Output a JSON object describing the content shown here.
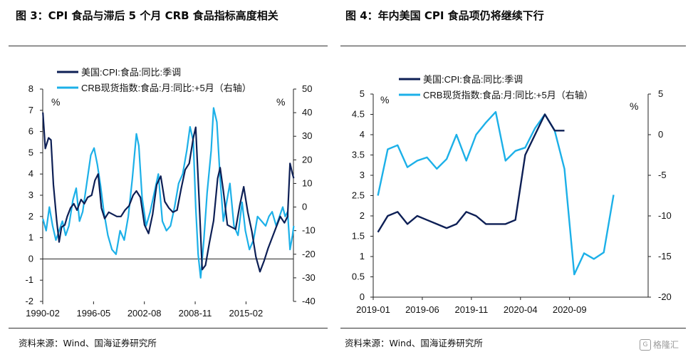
{
  "titles": {
    "left": "图 3：CPI 食品与滞后 5 个月 CRB 食品指标高度相关",
    "right": "图 4：年内美国 CPI 食品项仍将继续下行"
  },
  "sources": {
    "left": "资料来源：Wind、国海证券研究所",
    "right": "资料来源：Wind、国海证券研究所"
  },
  "watermark": {
    "icon": "gelonghui-logo-icon",
    "text": "格隆汇"
  },
  "colors": {
    "cpi_series": "#0d1f55",
    "crb_series": "#1cb0e8",
    "rule": "#333333"
  },
  "chart_data": [
    {
      "type": "line",
      "legend_position": "top-left",
      "grid": false,
      "x_ticks": [
        "1990-02",
        "1996-05",
        "2002-08",
        "2008-11",
        "2015-02"
      ],
      "x_range": [
        "1990-02",
        "2020-12"
      ],
      "y_left": {
        "lim": [
          -2,
          8
        ],
        "ticks": [
          -2,
          -1,
          0,
          1,
          2,
          3,
          4,
          5,
          6,
          7,
          8
        ],
        "unit": "%"
      },
      "y_right": {
        "lim": [
          -40,
          50
        ],
        "ticks": [
          -40,
          -30,
          -20,
          -10,
          0,
          10,
          20,
          30,
          40,
          50
        ],
        "unit": "%"
      },
      "series": [
        {
          "name": "美国:CPI:食品:同比:季调",
          "axis": "left",
          "points": [
            [
              1990.1,
              6.9
            ],
            [
              1990.4,
              5.2
            ],
            [
              1990.8,
              5.7
            ],
            [
              1991.1,
              5.6
            ],
            [
              1991.4,
              3.5
            ],
            [
              1991.8,
              1.8
            ],
            [
              1992.1,
              0.8
            ],
            [
              1992.4,
              1.5
            ],
            [
              1992.8,
              1.6
            ],
            [
              1993.1,
              2.0
            ],
            [
              1993.5,
              2.4
            ],
            [
              1993.9,
              2.6
            ],
            [
              1994.3,
              2.3
            ],
            [
              1994.8,
              2.8
            ],
            [
              1995.2,
              2.6
            ],
            [
              1995.6,
              2.9
            ],
            [
              1996.1,
              3.0
            ],
            [
              1996.5,
              3.7
            ],
            [
              1996.9,
              4.0
            ],
            [
              1997.3,
              2.4
            ],
            [
              1997.7,
              1.9
            ],
            [
              1998.2,
              2.2
            ],
            [
              1998.7,
              2.1
            ],
            [
              1999.2,
              2.0
            ],
            [
              1999.7,
              2.0
            ],
            [
              2000.2,
              2.3
            ],
            [
              2000.7,
              2.5
            ],
            [
              2001.2,
              3.0
            ],
            [
              2001.6,
              3.2
            ],
            [
              2002.1,
              2.9
            ],
            [
              2002.6,
              1.6
            ],
            [
              2003.1,
              1.2
            ],
            [
              2003.6,
              2.1
            ],
            [
              2004.1,
              3.5
            ],
            [
              2004.6,
              3.9
            ],
            [
              2005.1,
              2.7
            ],
            [
              2005.6,
              2.4
            ],
            [
              2006.1,
              2.2
            ],
            [
              2006.6,
              2.3
            ],
            [
              2007.1,
              3.3
            ],
            [
              2007.6,
              4.2
            ],
            [
              2008.1,
              4.5
            ],
            [
              2008.6,
              5.7
            ],
            [
              2008.9,
              6.2
            ],
            [
              2009.3,
              2.9
            ],
            [
              2009.7,
              -0.5
            ],
            [
              2010.1,
              -0.3
            ],
            [
              2010.6,
              0.8
            ],
            [
              2011.1,
              1.8
            ],
            [
              2011.6,
              3.8
            ],
            [
              2011.9,
              4.3
            ],
            [
              2012.3,
              3.2
            ],
            [
              2012.8,
              1.6
            ],
            [
              2013.3,
              1.5
            ],
            [
              2013.8,
              1.4
            ],
            [
              2014.3,
              2.5
            ],
            [
              2014.8,
              3.4
            ],
            [
              2015.3,
              2.2
            ],
            [
              2015.8,
              1.3
            ],
            [
              2016.3,
              0.1
            ],
            [
              2016.8,
              -0.6
            ],
            [
              2017.3,
              -0.1
            ],
            [
              2017.8,
              0.5
            ],
            [
              2018.3,
              1.0
            ],
            [
              2018.8,
              1.5
            ],
            [
              2019.3,
              2.0
            ],
            [
              2019.8,
              1.7
            ],
            [
              2020.2,
              2.0
            ],
            [
              2020.5,
              4.5
            ],
            [
              2020.8,
              4.0
            ],
            [
              2020.95,
              3.8
            ]
          ]
        },
        {
          "name": "CRB现货指数:食品:月:同比:+5月（右轴）",
          "axis": "right",
          "points": [
            [
              1990.1,
              -5
            ],
            [
              1990.5,
              -10
            ],
            [
              1990.9,
              0
            ],
            [
              1991.3,
              -8
            ],
            [
              1991.7,
              -14
            ],
            [
              1992.1,
              -10
            ],
            [
              1992.5,
              -6
            ],
            [
              1992.9,
              -12
            ],
            [
              1993.3,
              -8
            ],
            [
              1993.8,
              3
            ],
            [
              1994.2,
              8
            ],
            [
              1994.6,
              -6
            ],
            [
              1995.0,
              -2
            ],
            [
              1995.5,
              10
            ],
            [
              1996.0,
              22
            ],
            [
              1996.4,
              25
            ],
            [
              1996.8,
              18
            ],
            [
              1997.2,
              9
            ],
            [
              1997.6,
              -2
            ],
            [
              1998.1,
              -12
            ],
            [
              1998.6,
              -18
            ],
            [
              1999.1,
              -20
            ],
            [
              1999.6,
              -10
            ],
            [
              2000.1,
              -14
            ],
            [
              2000.6,
              -4
            ],
            [
              2001.1,
              12
            ],
            [
              2001.6,
              31
            ],
            [
              2001.9,
              26
            ],
            [
              2002.3,
              4
            ],
            [
              2002.8,
              -8
            ],
            [
              2003.3,
              -2
            ],
            [
              2003.8,
              6
            ],
            [
              2004.3,
              14
            ],
            [
              2004.8,
              -6
            ],
            [
              2005.3,
              -10
            ],
            [
              2005.8,
              -8
            ],
            [
              2006.3,
              0
            ],
            [
              2006.8,
              10
            ],
            [
              2007.3,
              14
            ],
            [
              2007.8,
              24
            ],
            [
              2008.2,
              34
            ],
            [
              2008.6,
              28
            ],
            [
              2008.9,
              0
            ],
            [
              2009.2,
              -20
            ],
            [
              2009.5,
              -30
            ],
            [
              2009.9,
              -14
            ],
            [
              2010.3,
              6
            ],
            [
              2010.8,
              24
            ],
            [
              2011.1,
              42
            ],
            [
              2011.5,
              36
            ],
            [
              2011.9,
              12
            ],
            [
              2012.3,
              -6
            ],
            [
              2012.7,
              2
            ],
            [
              2013.1,
              10
            ],
            [
              2013.6,
              -8
            ],
            [
              2014.1,
              -12
            ],
            [
              2014.6,
              2
            ],
            [
              2015.0,
              -10
            ],
            [
              2015.5,
              -18
            ],
            [
              2016.0,
              -14
            ],
            [
              2016.5,
              -4
            ],
            [
              2017.0,
              -6
            ],
            [
              2017.5,
              -8
            ],
            [
              2017.9,
              -4
            ],
            [
              2018.3,
              -2
            ],
            [
              2018.8,
              -8
            ],
            [
              2019.2,
              -4
            ],
            [
              2019.6,
              0
            ],
            [
              2019.9,
              -4
            ],
            [
              2020.2,
              -2
            ],
            [
              2020.5,
              -18
            ],
            [
              2020.8,
              -12
            ],
            [
              2020.95,
              -8
            ]
          ]
        }
      ]
    },
    {
      "type": "line",
      "legend_position": "top-left",
      "grid": false,
      "x_ticks": [
        "2019-01",
        "2019-06",
        "2019-11",
        "2020-04",
        "2020-09"
      ],
      "x_range": [
        "2019-01",
        "2021-05"
      ],
      "y_left": {
        "lim": [
          0,
          5
        ],
        "ticks": [
          0,
          0.5,
          1,
          1.5,
          2,
          2.5,
          3,
          3.5,
          4,
          4.5,
          5
        ],
        "unit": "%"
      },
      "y_right": {
        "lim": [
          -20,
          5
        ],
        "ticks": [
          -20,
          -15,
          -10,
          -5,
          0,
          5
        ],
        "unit": "%"
      },
      "series": [
        {
          "name": "美国:CPI:食品:同比:季调",
          "axis": "left",
          "months": [
            "2019-01",
            "2019-02",
            "2019-03",
            "2019-04",
            "2019-05",
            "2019-06",
            "2019-07",
            "2019-08",
            "2019-09",
            "2019-10",
            "2019-11",
            "2019-12",
            "2020-01",
            "2020-02",
            "2020-03",
            "2020-04",
            "2020-05",
            "2020-06",
            "2020-07",
            "2020-08"
          ],
          "values": [
            1.6,
            2.0,
            2.1,
            1.8,
            2.0,
            1.9,
            1.8,
            1.7,
            1.8,
            2.1,
            2.0,
            1.8,
            1.8,
            1.8,
            1.9,
            3.5,
            4.0,
            4.5,
            4.1,
            4.1
          ]
        },
        {
          "name": "CRB现货指数:食品:月:同比:+5月（右轴）",
          "axis": "right",
          "months": [
            "2019-01",
            "2019-02",
            "2019-03",
            "2019-04",
            "2019-05",
            "2019-06",
            "2019-07",
            "2019-08",
            "2019-09",
            "2019-10",
            "2019-11",
            "2019-12",
            "2020-01",
            "2020-02",
            "2020-03",
            "2020-04",
            "2020-05",
            "2020-06",
            "2020-07",
            "2020-08",
            "2020-09",
            "2020-10",
            "2020-11",
            "2020-12",
            "2021-01",
            "2021-02",
            "2021-03"
          ],
          "values": [
            -7.5,
            -1.8,
            -1.3,
            -4.0,
            -3.2,
            -2.8,
            -4.2,
            -3.0,
            0.0,
            -3.2,
            0.0,
            1.5,
            2.8,
            -3.2,
            -2.0,
            -1.6,
            0.8,
            2.5,
            0.5,
            -4.2,
            -17.2,
            -14.6,
            -15.3,
            -14.5,
            -7.4,
            null,
            null
          ]
        }
      ]
    }
  ]
}
